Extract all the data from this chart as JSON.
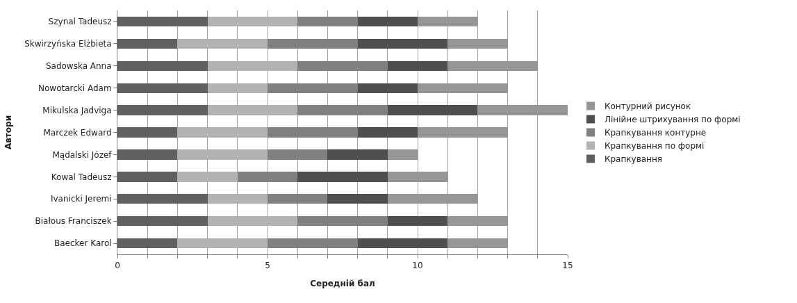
{
  "chart_data": {
    "type": "bar",
    "orientation": "horizontal",
    "stacked": true,
    "xlabel": "Середній бал",
    "ylabel": "Автори",
    "categories": [
      "Szynal Tadeusz",
      "Skwirzyńska Elżbieta",
      "Sadowska Anna",
      "Nowotarcki Adam",
      "Mikulska Jadviga",
      "Marczek Edward",
      "Mądalski Józef",
      "Kowal Tadeusz",
      "Ivanicki Jeremi",
      "Białous Franciszek",
      "Baecker Karol"
    ],
    "series": [
      {
        "name": "Крапкування",
        "color": "#606060",
        "values": [
          3,
          2,
          3,
          3,
          3,
          2,
          2,
          2,
          3,
          3,
          2
        ]
      },
      {
        "name": "Крапкування по формі",
        "color": "#b3b3b3",
        "values": [
          3,
          3,
          3,
          2,
          3,
          3,
          3,
          2,
          2,
          3,
          3
        ]
      },
      {
        "name": "Крапкування контурне",
        "color": "#808080",
        "values": [
          2,
          3,
          3,
          3,
          3,
          3,
          2,
          2,
          2,
          3,
          3
        ]
      },
      {
        "name": "Лінійне штрихування по формі",
        "color": "#4f4f4f",
        "values": [
          2,
          3,
          2,
          2,
          3,
          2,
          2,
          3,
          2,
          2,
          3
        ]
      },
      {
        "name": "Контурний рисунок",
        "color": "#969696",
        "values": [
          2,
          2,
          3,
          3,
          3,
          3,
          1,
          2,
          3,
          2,
          2
        ]
      }
    ],
    "xlim": [
      0,
      15
    ],
    "xticks": [
      0,
      {
        "value": 1,
        "label": null
      },
      {
        "value": 2,
        "label": null
      },
      {
        "value": 3,
        "label": null
      },
      {
        "value": 4,
        "label": null
      },
      5,
      {
        "value": 6,
        "label": null
      },
      {
        "value": 7,
        "label": null
      },
      {
        "value": 8,
        "label": null
      },
      {
        "value": 9,
        "label": null
      },
      10,
      {
        "value": 11,
        "label": null
      },
      {
        "value": 12,
        "label": null
      },
      {
        "value": 13,
        "label": null
      },
      {
        "value": 14,
        "label": null
      },
      15
    ],
    "grid": "x",
    "legend": "right"
  }
}
